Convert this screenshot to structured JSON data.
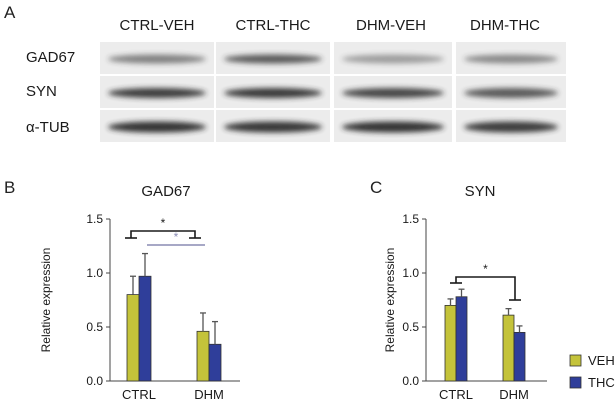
{
  "colors": {
    "veh": "#c4c33a",
    "thc": "#2f3e9a",
    "sig_black": "#1a1a1a",
    "sig_purple": "#8a8cb4",
    "blot_bg": "#ececec",
    "band": "#2b2b2b"
  },
  "panel_a": {
    "letter": "A",
    "lanes": [
      "CTRL-VEH",
      "CTRL-THC",
      "DHM-VEH",
      "DHM-THC"
    ],
    "rows": [
      "GAD67",
      "SYN",
      "α-TUB"
    ]
  },
  "panel_b": {
    "letter": "B"
  },
  "panel_c": {
    "letter": "C"
  },
  "legend": {
    "items": [
      {
        "label": "VEH",
        "color": "#c4c33a"
      },
      {
        "label": "THC",
        "color": "#2f3e9a"
      }
    ]
  },
  "chart_data": [
    {
      "type": "bar",
      "title": "GAD67",
      "ylabel": "Relative expression",
      "xlabel": "",
      "categories": [
        "CTRL",
        "DHM"
      ],
      "ylim": [
        0,
        1.5
      ],
      "yticks": [
        "0.0",
        "0.5",
        "1.0",
        "1.5"
      ],
      "series": [
        {
          "name": "VEH",
          "values": [
            0.8,
            0.46
          ],
          "errors": [
            0.17,
            0.17
          ]
        },
        {
          "name": "THC",
          "values": [
            0.97,
            0.34
          ],
          "errors": [
            0.21,
            0.21
          ]
        }
      ],
      "significance": [
        {
          "label": "*",
          "color": "sig_black"
        },
        {
          "label": "*",
          "color": "sig_purple"
        }
      ]
    },
    {
      "type": "bar",
      "title": "SYN",
      "ylabel": "Relative expression",
      "xlabel": "",
      "categories": [
        "CTRL",
        "DHM"
      ],
      "ylim": [
        0,
        1.5
      ],
      "yticks": [
        "0.0",
        "0.5",
        "1.0",
        "1.5"
      ],
      "series": [
        {
          "name": "VEH",
          "values": [
            0.7,
            0.61
          ],
          "errors": [
            0.06,
            0.06
          ]
        },
        {
          "name": "THC",
          "values": [
            0.78,
            0.45
          ],
          "errors": [
            0.07,
            0.06
          ]
        }
      ],
      "significance": [
        {
          "label": "*",
          "color": "sig_black"
        }
      ]
    }
  ]
}
